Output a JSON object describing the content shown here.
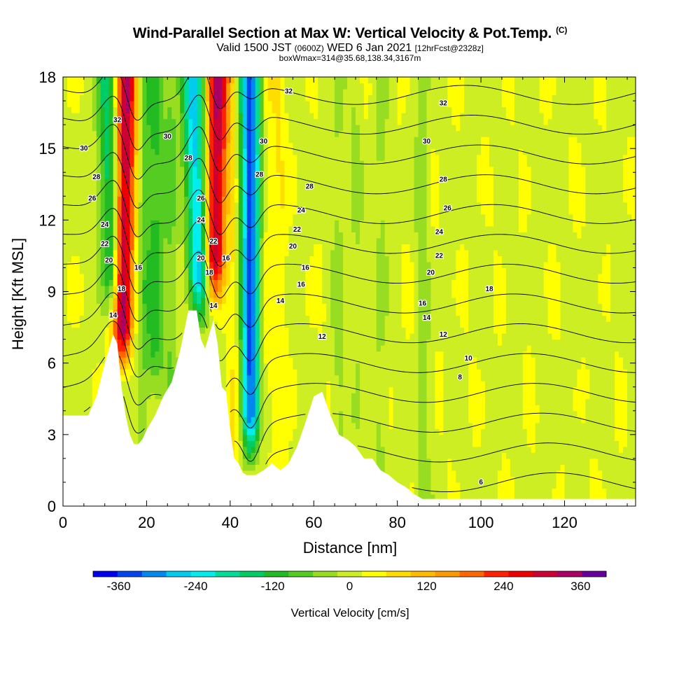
{
  "title": {
    "main": "Wind-Parallel Section at Max W: Vertical Velocity & Pot.Temp.",
    "copyright": "(C)",
    "valid_prefix": "Valid 1500 JST",
    "valid_utc": "(0600Z)",
    "valid_date": "WED 6 Jan 2021",
    "forecast": "[12hrFcst@2328z]",
    "box_info": "boxWmax=314@35.68,138.34,3167m"
  },
  "chart_data": {
    "type": "heatmap",
    "xlabel": "Distance [nm]",
    "ylabel": "Height [Kft MSL]",
    "xlim": [
      0,
      137
    ],
    "ylim": [
      0,
      18
    ],
    "x_ticks": [
      0,
      20,
      40,
      60,
      80,
      100,
      120
    ],
    "y_ticks": [
      0,
      3,
      6,
      9,
      12,
      15,
      18
    ],
    "colorbar": {
      "label": "Vertical Velocity [cm/s]",
      "ticks": [
        -360,
        -240,
        -120,
        0,
        120,
        240,
        360
      ],
      "range": [
        -400,
        400
      ],
      "colors": [
        "#0000ee",
        "#0044ee",
        "#0088ee",
        "#00ccee",
        "#00eeee",
        "#00dd99",
        "#00cc66",
        "#22bb22",
        "#55cc22",
        "#99dd22",
        "#ccee22",
        "#ffff00",
        "#ffdd00",
        "#ffbb00",
        "#ff9900",
        "#ff6600",
        "#ff2200",
        "#ee0000",
        "#cc0033",
        "#aa0066",
        "#660099"
      ]
    },
    "terrain_kft": [
      [
        0,
        3.8
      ],
      [
        2,
        3.8
      ],
      [
        4,
        3.8
      ],
      [
        6,
        3.8
      ],
      [
        8,
        4.6
      ],
      [
        10,
        6.0
      ],
      [
        12,
        7.2
      ],
      [
        13,
        6.8
      ],
      [
        14,
        5.0
      ],
      [
        15,
        3.8
      ],
      [
        16,
        3.0
      ],
      [
        17,
        2.6
      ],
      [
        18,
        2.6
      ],
      [
        19,
        2.8
      ],
      [
        20,
        3.2
      ],
      [
        22,
        3.8
      ],
      [
        24,
        4.6
      ],
      [
        26,
        5.2
      ],
      [
        28,
        6.5
      ],
      [
        30,
        8.2
      ],
      [
        32,
        8.2
      ],
      [
        33,
        7.0
      ],
      [
        34,
        6.6
      ],
      [
        35,
        7.2
      ],
      [
        36,
        7.8
      ],
      [
        37,
        6.8
      ],
      [
        38,
        5.0
      ],
      [
        39,
        4.8
      ],
      [
        40,
        3.2
      ],
      [
        41,
        2.0
      ],
      [
        42,
        1.8
      ],
      [
        43,
        1.4
      ],
      [
        44,
        1.3
      ],
      [
        46,
        1.3
      ],
      [
        48,
        1.5
      ],
      [
        50,
        1.8
      ],
      [
        52,
        1.5
      ],
      [
        54,
        1.8
      ],
      [
        56,
        2.5
      ],
      [
        58,
        3.5
      ],
      [
        60,
        4.6
      ],
      [
        62,
        4.8
      ],
      [
        64,
        3.8
      ],
      [
        66,
        3.0
      ],
      [
        68,
        2.8
      ],
      [
        70,
        2.5
      ],
      [
        72,
        2.0
      ],
      [
        74,
        2.0
      ],
      [
        76,
        1.5
      ],
      [
        78,
        1.3
      ],
      [
        80,
        1.0
      ],
      [
        82,
        0.8
      ],
      [
        84,
        0.5
      ],
      [
        86,
        0.3
      ],
      [
        88,
        0.3
      ],
      [
        92,
        0.3
      ],
      [
        96,
        0.3
      ],
      [
        100,
        0.3
      ],
      [
        110,
        0.3
      ],
      [
        120,
        0.3
      ],
      [
        130,
        0.3
      ],
      [
        137,
        0.3
      ]
    ],
    "updraft_bands": [
      {
        "x_base": 14,
        "x_top": 15,
        "w": 340
      },
      {
        "x_base": 36,
        "x_top": 37,
        "w": 320
      },
      {
        "x_base": 47,
        "x_top": 48,
        "w": 80
      }
    ],
    "downdraft_bands": [
      {
        "x_base": 12,
        "x_top": 11,
        "w": -200
      },
      {
        "x_base": 33,
        "x_top": 31,
        "w": -280
      },
      {
        "x_base": 45,
        "x_top": 45,
        "w": -380
      },
      {
        "x_base": 22,
        "x_top": 22,
        "w": -110
      }
    ],
    "theta_contours": [
      6,
      8,
      10,
      12,
      14,
      16,
      18,
      20,
      22,
      24,
      26,
      28,
      30,
      32
    ],
    "contour_labels": [
      {
        "x": 5,
        "y": 15.0,
        "t": "30"
      },
      {
        "x": 8,
        "y": 13.8,
        "t": "28"
      },
      {
        "x": 7,
        "y": 12.9,
        "t": "26"
      },
      {
        "x": 10,
        "y": 11.8,
        "t": "24"
      },
      {
        "x": 10,
        "y": 11.0,
        "t": "22"
      },
      {
        "x": 11,
        "y": 10.3,
        "t": "20"
      },
      {
        "x": 12,
        "y": 8.0,
        "t": "14"
      },
      {
        "x": 13,
        "y": 16.2,
        "t": "32"
      },
      {
        "x": 14,
        "y": 9.1,
        "t": "18"
      },
      {
        "x": 18,
        "y": 10.0,
        "t": "16"
      },
      {
        "x": 25,
        "y": 15.5,
        "t": "30"
      },
      {
        "x": 30,
        "y": 14.6,
        "t": "28"
      },
      {
        "x": 33,
        "y": 12.9,
        "t": "26"
      },
      {
        "x": 33,
        "y": 12.0,
        "t": "24"
      },
      {
        "x": 33,
        "y": 10.4,
        "t": "20"
      },
      {
        "x": 36,
        "y": 11.1,
        "t": "22"
      },
      {
        "x": 35,
        "y": 9.8,
        "t": "18"
      },
      {
        "x": 36,
        "y": 8.4,
        "t": "14"
      },
      {
        "x": 39,
        "y": 10.4,
        "t": "16"
      },
      {
        "x": 48,
        "y": 15.3,
        "t": "30"
      },
      {
        "x": 47,
        "y": 13.9,
        "t": "28"
      },
      {
        "x": 54,
        "y": 17.4,
        "t": "32"
      },
      {
        "x": 59,
        "y": 13.4,
        "t": "28"
      },
      {
        "x": 57,
        "y": 12.4,
        "t": "24"
      },
      {
        "x": 56,
        "y": 11.6,
        "t": "22"
      },
      {
        "x": 55,
        "y": 10.9,
        "t": "20"
      },
      {
        "x": 58,
        "y": 10.0,
        "t": "16"
      },
      {
        "x": 57,
        "y": 9.3,
        "t": "16"
      },
      {
        "x": 52,
        "y": 8.6,
        "t": "14"
      },
      {
        "x": 62,
        "y": 7.1,
        "t": "12"
      },
      {
        "x": 87,
        "y": 15.3,
        "t": "30"
      },
      {
        "x": 91,
        "y": 16.9,
        "t": "32"
      },
      {
        "x": 91,
        "y": 13.7,
        "t": "28"
      },
      {
        "x": 92,
        "y": 12.5,
        "t": "26"
      },
      {
        "x": 90,
        "y": 11.5,
        "t": "24"
      },
      {
        "x": 90,
        "y": 10.5,
        "t": "22"
      },
      {
        "x": 88,
        "y": 9.8,
        "t": "20"
      },
      {
        "x": 86,
        "y": 8.5,
        "t": "16"
      },
      {
        "x": 87,
        "y": 7.9,
        "t": "14"
      },
      {
        "x": 91,
        "y": 7.2,
        "t": "12"
      },
      {
        "x": 97,
        "y": 6.2,
        "t": "10"
      },
      {
        "x": 95,
        "y": 5.4,
        "t": "8"
      },
      {
        "x": 102,
        "y": 9.1,
        "t": "18"
      },
      {
        "x": 100,
        "y": 1.0,
        "t": "6"
      }
    ]
  }
}
